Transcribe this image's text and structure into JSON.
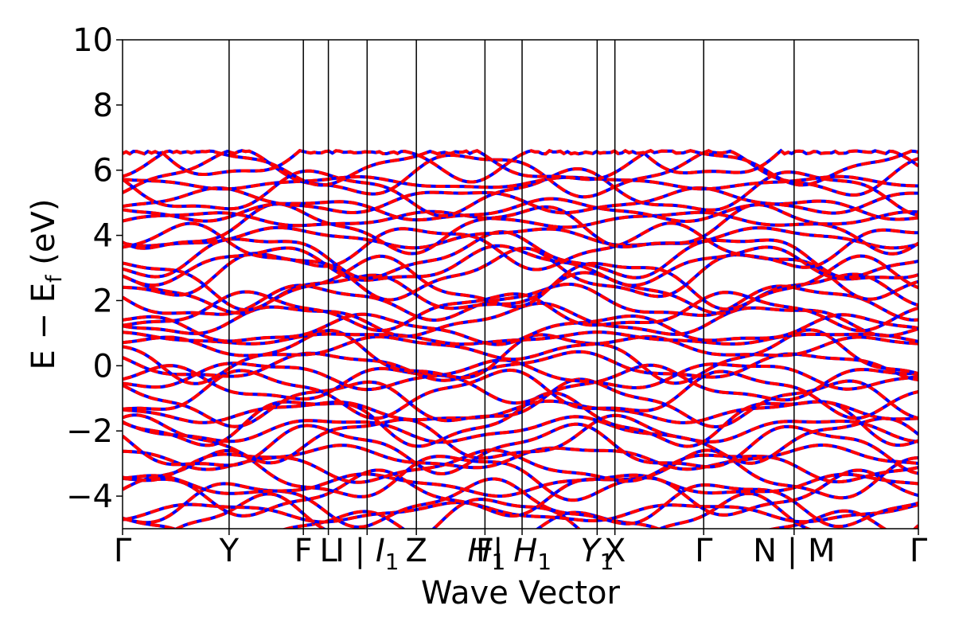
{
  "chart_data": {
    "type": "line",
    "title": "",
    "xlabel": "Wave Vector",
    "ylabel": "E − E",
    "ylabel_subscript": "f",
    "ylabel_unit": " (eV)",
    "ylim": [
      -5,
      10
    ],
    "y_ticks": [
      -4,
      -2,
      0,
      2,
      4,
      6,
      8,
      10
    ],
    "y_tick_labels": [
      "−4",
      "−2",
      "0",
      "2",
      "4",
      "6",
      "8",
      "10"
    ],
    "x_ticks": [
      0,
      1.32,
      2.24,
      2.55,
      3.03,
      3.64,
      4.49,
      4.95,
      5.88,
      6.1,
      7.2,
      8.32,
      9.86
    ],
    "x_tick_labels": [
      {
        "main": "Γ"
      },
      {
        "main": "Y"
      },
      {
        "main": "F"
      },
      {
        "main": "L"
      },
      {
        "main": "I | I",
        "sub": "1",
        "italic_from": 4
      },
      {
        "main": "Z"
      },
      {
        "main": "F",
        "overlay": "H",
        "sub": "1",
        "overlay_italic": true
      },
      {
        "main": "| H",
        "sub": "1",
        "italic_from": 2
      },
      {
        "main": "Y",
        "sub": "1",
        "italic": true
      },
      {
        "main": "X"
      },
      {
        "main": "Γ"
      },
      {
        "main": "N | M"
      },
      {
        "main": "Γ"
      }
    ],
    "xlim": [
      0,
      9.86
    ],
    "grid": false,
    "legend": "none",
    "series": [
      {
        "color": "#0000ff",
        "style": "solid"
      },
      {
        "color": "#ff0000",
        "style": "dashed"
      }
    ],
    "band_count_shown": 42,
    "band_energy_max": 6.6,
    "note_lines": "Vertical lines at each high-symmetry point",
    "colors": {
      "spin_up": "#0000ff",
      "spin_down": "#ff0000",
      "axis": "#000000"
    }
  }
}
